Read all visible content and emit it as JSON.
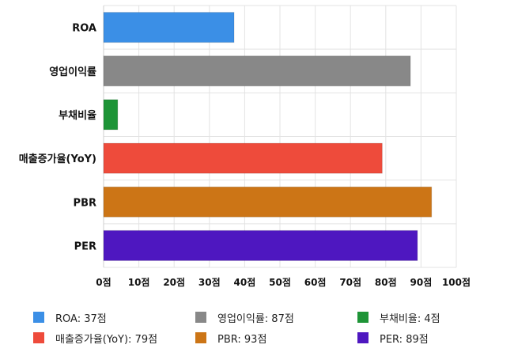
{
  "chart_data": {
    "type": "bar",
    "orientation": "horizontal",
    "categories": [
      "ROA",
      "영업이익률",
      "부채비율",
      "매출증가율(YoY)",
      "PBR",
      "PER"
    ],
    "values": [
      37,
      87,
      4,
      79,
      93,
      89
    ],
    "colors": [
      "#3b8fe6",
      "#888888",
      "#1e9437",
      "#ee4b3b",
      "#cc7516",
      "#4e17c0"
    ],
    "xlim": [
      0,
      100
    ],
    "x_ticks": [
      0,
      10,
      20,
      30,
      40,
      50,
      60,
      70,
      80,
      90,
      100
    ],
    "tick_suffix": "점",
    "grid": true,
    "legend_position": "bottom",
    "legend": [
      {
        "label": "ROA: 37점",
        "color": "#3b8fe6"
      },
      {
        "label": "영업이익률: 87점",
        "color": "#888888"
      },
      {
        "label": "부채비율: 4점",
        "color": "#1e9437"
      },
      {
        "label": "매출증가율(YoY): 79점",
        "color": "#ee4b3b"
      },
      {
        "label": "PBR: 93점",
        "color": "#cc7516"
      },
      {
        "label": "PER: 89점",
        "color": "#4e17c0"
      }
    ]
  }
}
